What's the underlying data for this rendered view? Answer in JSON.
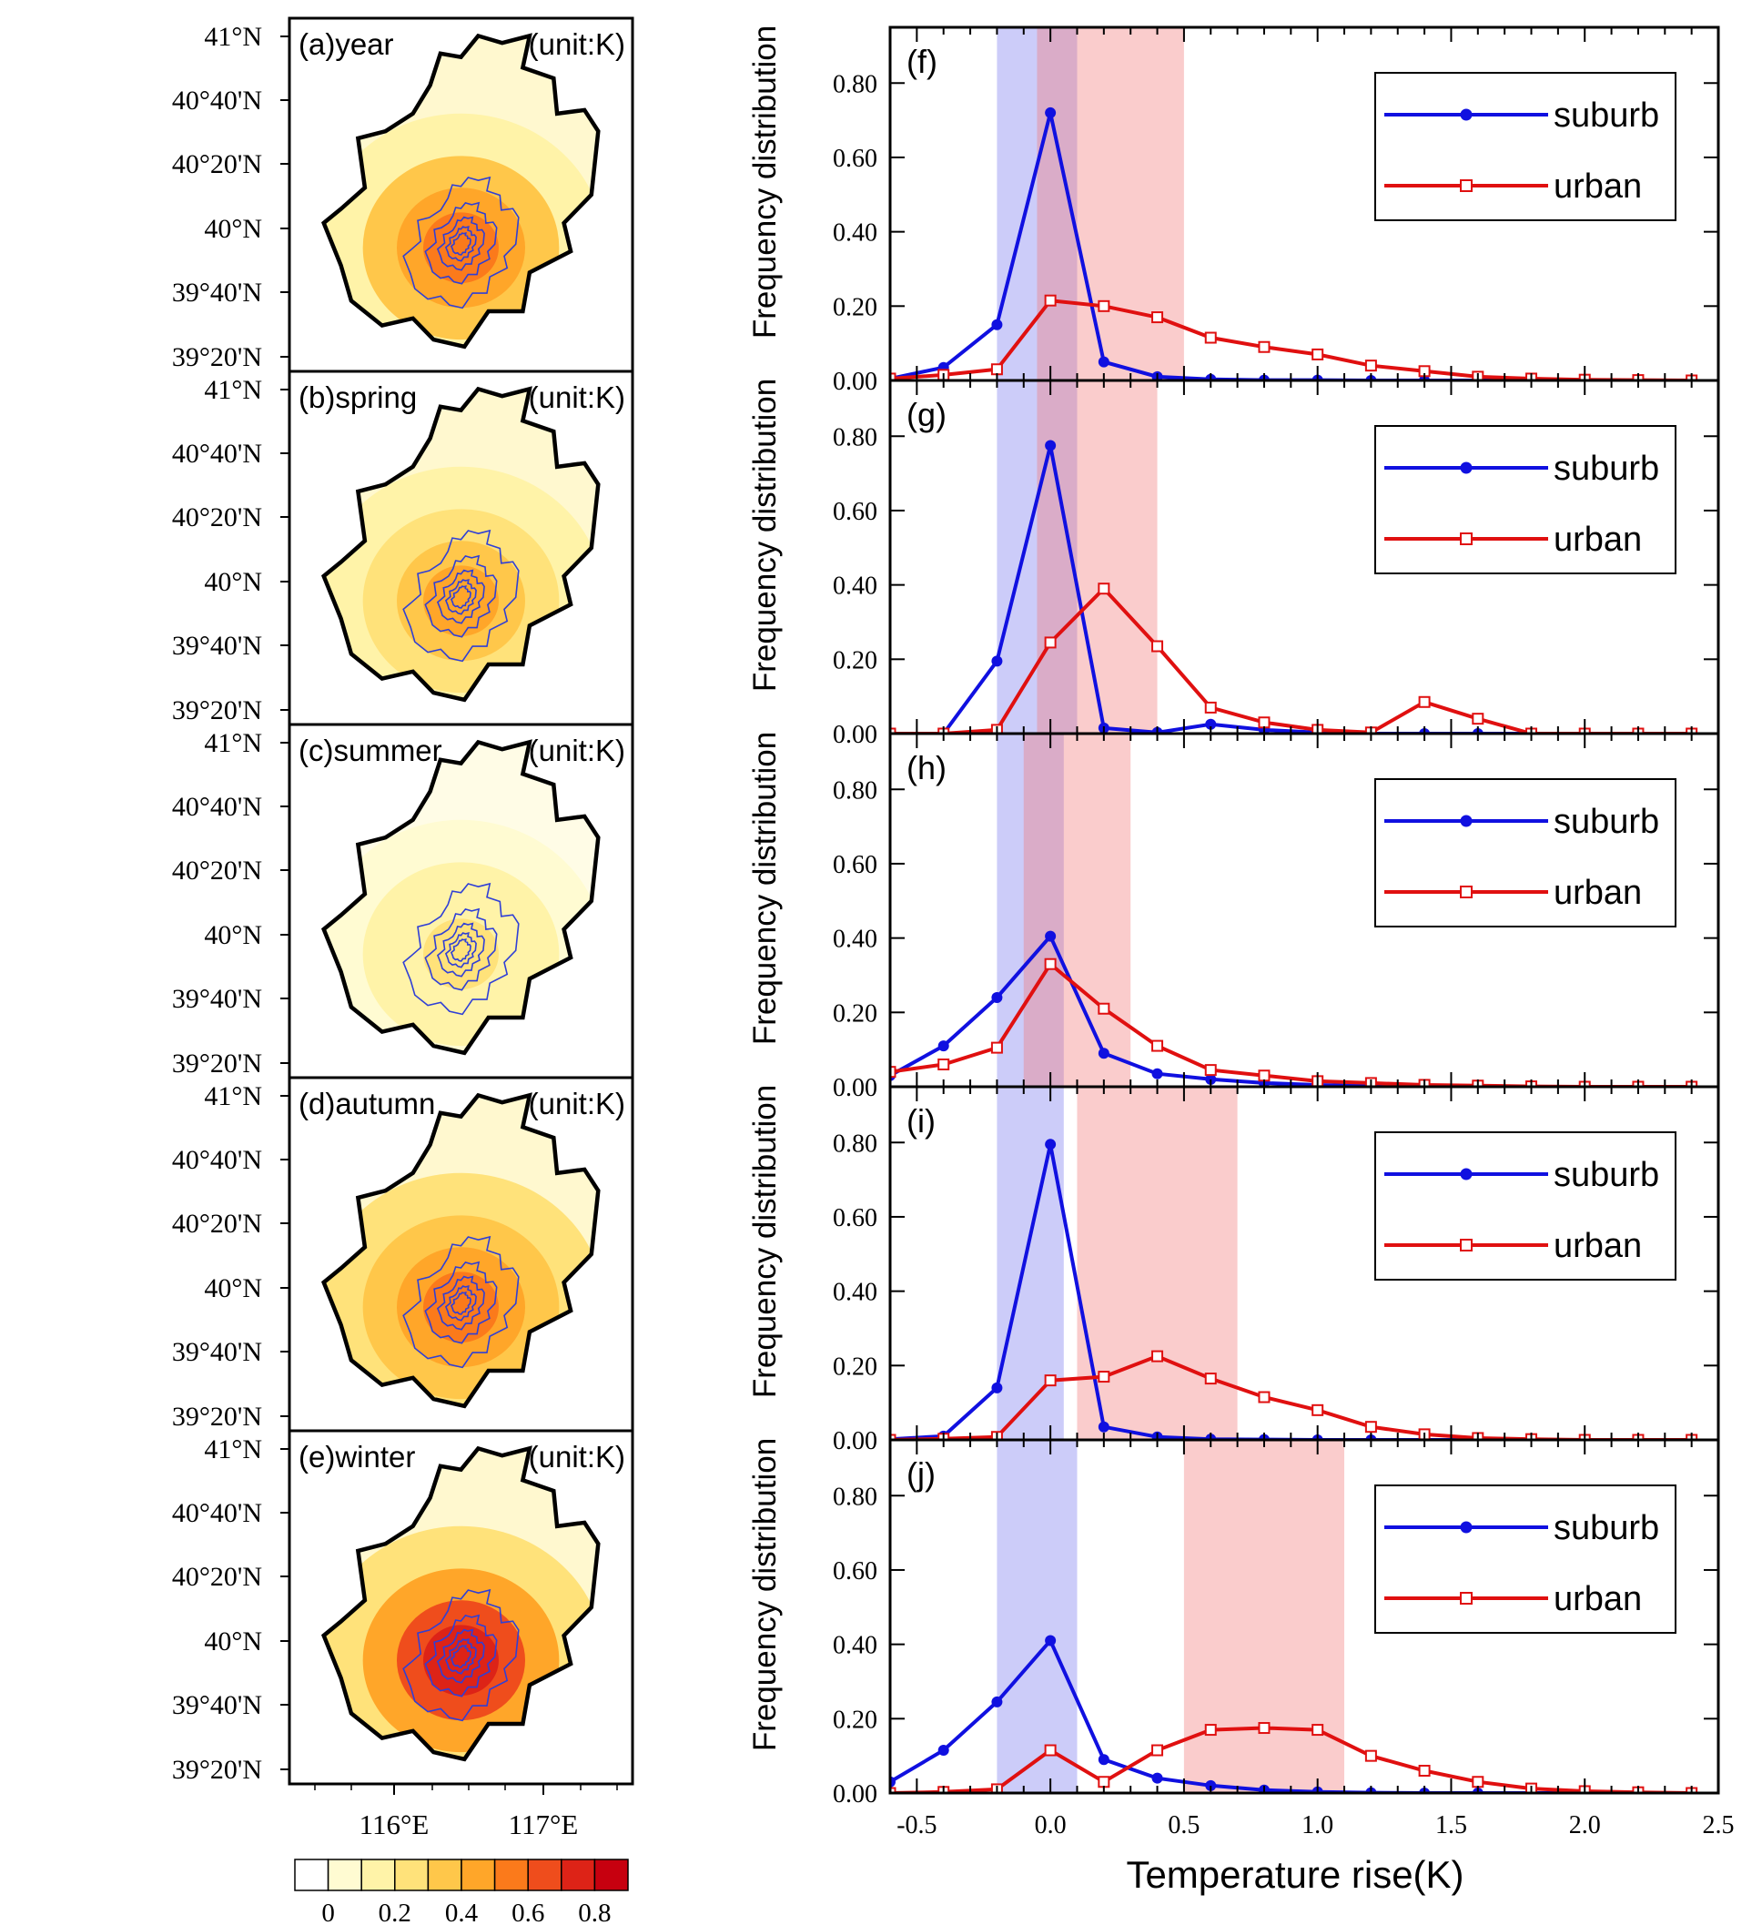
{
  "maps": {
    "unit_label": "(unit:K)",
    "lat_labels": [
      "41°N",
      "40°40'N",
      "40°20'N",
      "40°N",
      "39°40'N",
      "39°20'N"
    ],
    "lon_labels": [
      "116°E",
      "117°E"
    ],
    "panels": [
      {
        "label": "(a)year",
        "intensity": 0.55
      },
      {
        "label": "(b)spring",
        "intensity": 0.45
      },
      {
        "label": "(c)summer",
        "intensity": 0.2
      },
      {
        "label": "(d)autumn",
        "intensity": 0.65
      },
      {
        "label": "(e)winter",
        "intensity": 0.85
      }
    ],
    "colorbar": {
      "labels": [
        "0",
        "0.2",
        "0.4",
        "0.6",
        "0.8"
      ],
      "colors": [
        "#ffffff",
        "#fffbd2",
        "#fff3a8",
        "#ffe27a",
        "#ffc74a",
        "#ffa629",
        "#fb7a1b",
        "#ef4d1c",
        "#dd2317",
        "#c7000f"
      ]
    },
    "colors": {
      "contour": "#2f3fd6",
      "border": "#000000"
    }
  },
  "chart_data": [
    {
      "type": "line",
      "label": "(f)",
      "ylabel": "Frequency distribution",
      "xlabel": "",
      "x": [
        -0.6,
        -0.4,
        -0.2,
        0.0,
        0.2,
        0.4,
        0.6,
        0.8,
        1.0,
        1.2,
        1.4,
        1.6,
        1.8,
        2.0,
        2.2,
        2.4
      ],
      "xlim": [
        -0.6,
        2.5
      ],
      "ylim": [
        0,
        0.95
      ],
      "yticks": [
        "0.00",
        "0.20",
        "0.40",
        "0.60",
        "0.80"
      ],
      "series": [
        {
          "name": "suburb",
          "color": "#1010e0",
          "marker": "dot",
          "values": [
            0.005,
            0.035,
            0.15,
            0.72,
            0.05,
            0.01,
            0.003,
            0.001,
            0.001,
            0.0,
            0.0,
            0.0,
            0.0,
            0.0,
            0.0,
            0.0
          ]
        },
        {
          "name": "urban",
          "color": "#e01010",
          "marker": "square",
          "values": [
            0.005,
            0.015,
            0.03,
            0.215,
            0.2,
            0.17,
            0.115,
            0.09,
            0.07,
            0.04,
            0.025,
            0.01,
            0.005,
            0.002,
            0.001,
            0.0
          ]
        }
      ],
      "bands": [
        {
          "series": "suburb",
          "range": [
            -0.2,
            0.1
          ]
        },
        {
          "series": "urban",
          "range": [
            -0.05,
            0.5
          ]
        }
      ]
    },
    {
      "type": "line",
      "label": "(g)",
      "ylabel": "Frequency distribution",
      "xlabel": "",
      "x": [
        -0.6,
        -0.4,
        -0.2,
        0.0,
        0.2,
        0.4,
        0.6,
        0.8,
        1.0,
        1.2,
        1.4,
        1.6,
        1.8,
        2.0,
        2.2,
        2.4
      ],
      "xlim": [
        -0.6,
        2.5
      ],
      "ylim": [
        0,
        0.95
      ],
      "yticks": [
        "0.00",
        "0.20",
        "0.40",
        "0.60",
        "0.80"
      ],
      "series": [
        {
          "name": "suburb",
          "color": "#1010e0",
          "marker": "dot",
          "values": [
            0.0,
            0.0,
            0.195,
            0.775,
            0.015,
            0.003,
            0.025,
            0.01,
            0.003,
            0.0,
            0.0,
            0.0,
            0.0,
            0.0,
            0.0,
            0.0
          ]
        },
        {
          "name": "urban",
          "color": "#e01010",
          "marker": "square",
          "values": [
            0.0,
            0.0,
            0.01,
            0.245,
            0.39,
            0.235,
            0.07,
            0.03,
            0.01,
            0.003,
            0.085,
            0.04,
            0.0,
            0.0,
            0.0,
            0.0
          ]
        }
      ],
      "bands": [
        {
          "series": "suburb",
          "range": [
            -0.2,
            0.1
          ]
        },
        {
          "series": "urban",
          "range": [
            -0.05,
            0.4
          ]
        }
      ]
    },
    {
      "type": "line",
      "label": "(h)",
      "ylabel": "Frequency distribution",
      "xlabel": "",
      "x": [
        -0.6,
        -0.4,
        -0.2,
        0.0,
        0.2,
        0.4,
        0.6,
        0.8,
        1.0,
        1.2,
        1.4,
        1.6,
        1.8,
        2.0,
        2.2,
        2.4
      ],
      "xlim": [
        -0.6,
        2.5
      ],
      "ylim": [
        0,
        0.95
      ],
      "yticks": [
        "0.00",
        "0.20",
        "0.40",
        "0.60",
        "0.80"
      ],
      "series": [
        {
          "name": "suburb",
          "color": "#1010e0",
          "marker": "dot",
          "values": [
            0.03,
            0.11,
            0.24,
            0.405,
            0.09,
            0.035,
            0.02,
            0.01,
            0.005,
            0.002,
            0.001,
            0.0,
            0.0,
            0.0,
            0.0,
            0.0
          ]
        },
        {
          "name": "urban",
          "color": "#e01010",
          "marker": "square",
          "values": [
            0.04,
            0.06,
            0.105,
            0.33,
            0.21,
            0.11,
            0.045,
            0.03,
            0.015,
            0.01,
            0.005,
            0.003,
            0.001,
            0.0,
            0.0,
            0.0
          ]
        }
      ],
      "bands": [
        {
          "series": "suburb",
          "range": [
            -0.2,
            0.05
          ]
        },
        {
          "series": "urban",
          "range": [
            -0.1,
            0.3
          ]
        }
      ]
    },
    {
      "type": "line",
      "label": "(i)",
      "ylabel": "Frequency distribution",
      "xlabel": "",
      "x": [
        -0.6,
        -0.4,
        -0.2,
        0.0,
        0.2,
        0.4,
        0.6,
        0.8,
        1.0,
        1.2,
        1.4,
        1.6,
        1.8,
        2.0,
        2.2,
        2.4
      ],
      "xlim": [
        -0.6,
        2.5
      ],
      "ylim": [
        0,
        0.95
      ],
      "yticks": [
        "0.00",
        "0.20",
        "0.40",
        "0.60",
        "0.80"
      ],
      "series": [
        {
          "name": "suburb",
          "color": "#1010e0",
          "marker": "dot",
          "values": [
            0.002,
            0.01,
            0.14,
            0.795,
            0.035,
            0.008,
            0.002,
            0.001,
            0.0,
            0.0,
            0.0,
            0.0,
            0.0,
            0.0,
            0.0,
            0.0
          ]
        },
        {
          "name": "urban",
          "color": "#e01010",
          "marker": "square",
          "values": [
            0.0,
            0.003,
            0.008,
            0.16,
            0.17,
            0.225,
            0.165,
            0.115,
            0.08,
            0.035,
            0.015,
            0.005,
            0.002,
            0.0,
            0.0,
            0.0
          ]
        }
      ],
      "bands": [
        {
          "series": "suburb",
          "range": [
            -0.2,
            0.05
          ]
        },
        {
          "series": "urban",
          "range": [
            0.1,
            0.7
          ]
        }
      ]
    },
    {
      "type": "line",
      "label": "(j)",
      "ylabel": "Frequency distribution",
      "xlabel": "Temperature rise(K)",
      "x": [
        -0.6,
        -0.4,
        -0.2,
        0.0,
        0.2,
        0.4,
        0.6,
        0.8,
        1.0,
        1.2,
        1.4,
        1.6,
        1.8,
        2.0,
        2.2,
        2.4
      ],
      "xlim": [
        -0.6,
        2.5
      ],
      "ylim": [
        0,
        0.95
      ],
      "yticks": [
        "0.00",
        "0.20",
        "0.40",
        "0.60",
        "0.80"
      ],
      "xticks": [
        "-0.5",
        "0.0",
        "0.5",
        "1.0",
        "1.5",
        "2.0",
        "2.5"
      ],
      "series": [
        {
          "name": "suburb",
          "color": "#1010e0",
          "marker": "dot",
          "values": [
            0.03,
            0.115,
            0.245,
            0.41,
            0.09,
            0.04,
            0.02,
            0.008,
            0.003,
            0.001,
            0.0,
            0.0,
            0.0,
            0.0,
            0.0,
            0.0
          ]
        },
        {
          "name": "urban",
          "color": "#e01010",
          "marker": "square",
          "values": [
            0.0,
            0.003,
            0.01,
            0.115,
            0.03,
            0.115,
            0.17,
            0.175,
            0.17,
            0.1,
            0.06,
            0.03,
            0.012,
            0.005,
            0.002,
            0.0
          ]
        }
      ],
      "bands": [
        {
          "series": "suburb",
          "range": [
            -0.2,
            0.1
          ]
        },
        {
          "series": "urban",
          "range": [
            0.5,
            1.1
          ]
        }
      ]
    }
  ]
}
